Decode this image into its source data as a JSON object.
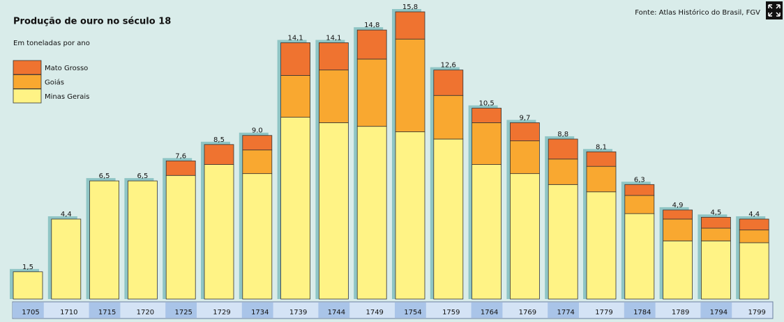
{
  "chart_data": {
    "type": "stacked_bar",
    "title": "Produção de ouro no século 18",
    "subtitle": "Em toneladas por ano",
    "source": "Fonte: Atlas Histórico do Brasil, FGV",
    "categories": [
      "1705",
      "1710",
      "1715",
      "1720",
      "1725",
      "1729",
      "1734",
      "1739",
      "1744",
      "1749",
      "1754",
      "1759",
      "1764",
      "1769",
      "1774",
      "1779",
      "1784",
      "1789",
      "1794",
      "1799"
    ],
    "series": [
      {
        "name": "Minas Gerais",
        "color": "#fff385",
        "values": [
          1.5,
          4.4,
          6.5,
          6.5,
          6.8,
          7.4,
          6.9,
          10.0,
          9.7,
          9.5,
          9.2,
          8.8,
          7.4,
          6.9,
          6.3,
          5.9,
          4.7,
          3.2,
          3.2,
          3.1
        ]
      },
      {
        "name": "Goiás",
        "color": "#f9a830",
        "values": [
          0,
          0,
          0,
          0,
          0,
          0,
          1.3,
          2.3,
          2.9,
          3.7,
          5.1,
          2.4,
          2.3,
          1.8,
          1.4,
          1.4,
          1.0,
          1.2,
          0.7,
          0.7
        ]
      },
      {
        "name": "Mato Grosso",
        "color": "#ef7330",
        "values": [
          0,
          0,
          0,
          0,
          0.8,
          1.1,
          0.8,
          1.8,
          1.5,
          1.6,
          1.5,
          1.4,
          0.8,
          1.0,
          1.1,
          0.8,
          0.6,
          0.5,
          0.6,
          0.6
        ]
      }
    ],
    "totals": [
      1.5,
      4.4,
      6.5,
      6.5,
      7.6,
      8.5,
      9.0,
      14.1,
      14.1,
      14.8,
      15.8,
      12.6,
      10.5,
      9.7,
      8.8,
      8.1,
      6.3,
      4.9,
      4.5,
      4.4
    ],
    "total_labels": [
      "1,5",
      "4,4",
      "6,5",
      "6,5",
      "7,6",
      "8,5",
      "9.0",
      "14,1",
      "14,1",
      "14,8",
      "15,8",
      "12,6",
      "10,5",
      "9,7",
      "8,8",
      "8,1",
      "6,3",
      "4,9",
      "4,5",
      "4,4"
    ]
  }
}
